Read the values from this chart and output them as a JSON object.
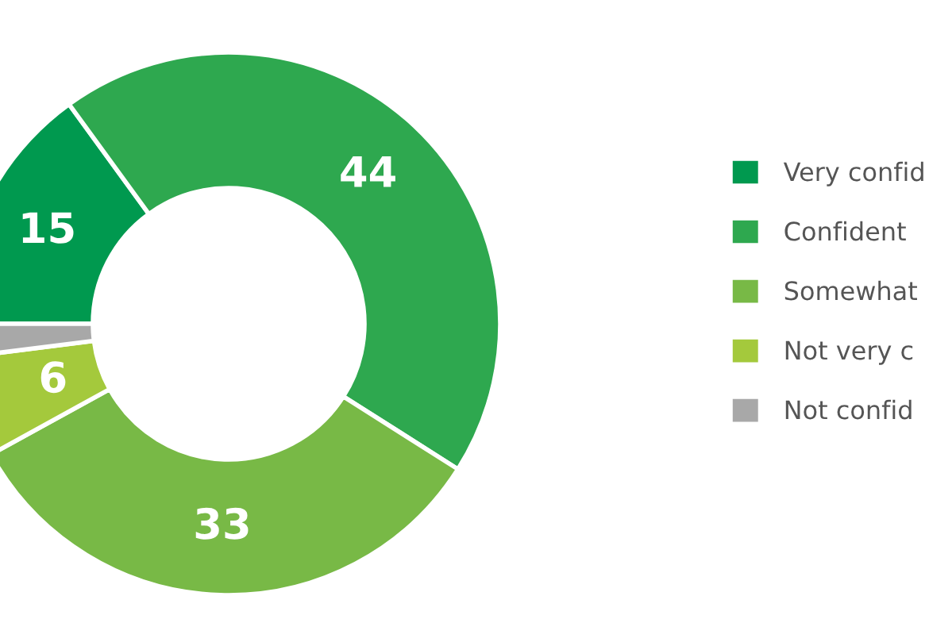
{
  "chart_data": {
    "type": "donut",
    "categories": [
      "Very confid",
      "Confident",
      "Somewhat",
      "Not very c",
      "Not confid"
    ],
    "values": [
      15,
      44,
      33,
      6,
      2
    ],
    "colors": [
      "#00994f",
      "#2ea84f",
      "#78b946",
      "#a4c93c",
      "#a8a8a8"
    ],
    "value_labels": [
      "15",
      "44",
      "33",
      "6",
      null
    ],
    "legend": "right"
  }
}
